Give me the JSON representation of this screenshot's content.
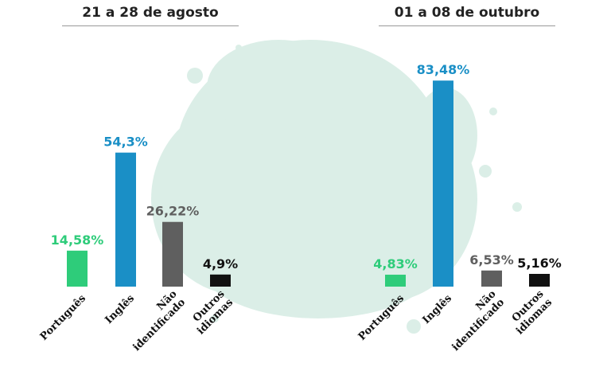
{
  "colors": {
    "portugues": "#2ecc7a",
    "ingles": "#1a8fc6",
    "nao_identificado": "#5f5f5f",
    "outros": "#111111",
    "splash": "#d5ece3"
  },
  "chart_data": [
    {
      "type": "bar",
      "title": "21 a 28 de agosto",
      "categories": [
        "Português",
        "Inglês",
        "Não identificado",
        "Outros idiomas"
      ],
      "category_lines": [
        [
          "Português"
        ],
        [
          "Inglês"
        ],
        [
          "Não",
          "identificado"
        ],
        [
          "Outros",
          "idiomas"
        ]
      ],
      "values": [
        14.58,
        54.3,
        26.22,
        4.9
      ],
      "data_labels": [
        "14,58%",
        "54,3%",
        "26,22%",
        "4,9%"
      ],
      "color_keys": [
        "portugues",
        "ingles",
        "nao_identificado",
        "outros"
      ],
      "xlabel": "",
      "ylabel": "",
      "ylim": [
        0,
        100
      ],
      "grid": false,
      "legend": "none"
    },
    {
      "type": "bar",
      "title": "01 a 08 de outubro",
      "categories": [
        "Português",
        "Inglês",
        "Não identificado",
        "Outros idiomas"
      ],
      "category_lines": [
        [
          "Português"
        ],
        [
          "Inglês"
        ],
        [
          "Não",
          "identificado"
        ],
        [
          "Outros",
          "idiomas"
        ]
      ],
      "values": [
        4.83,
        83.48,
        6.53,
        5.16
      ],
      "data_labels": [
        "4,83%",
        "83,48%",
        "6,53%",
        "5,16%"
      ],
      "color_keys": [
        "portugues",
        "ingles",
        "nao_identificado",
        "outros"
      ],
      "xlabel": "",
      "ylabel": "",
      "ylim": [
        0,
        100
      ],
      "grid": false,
      "legend": "none"
    }
  ]
}
